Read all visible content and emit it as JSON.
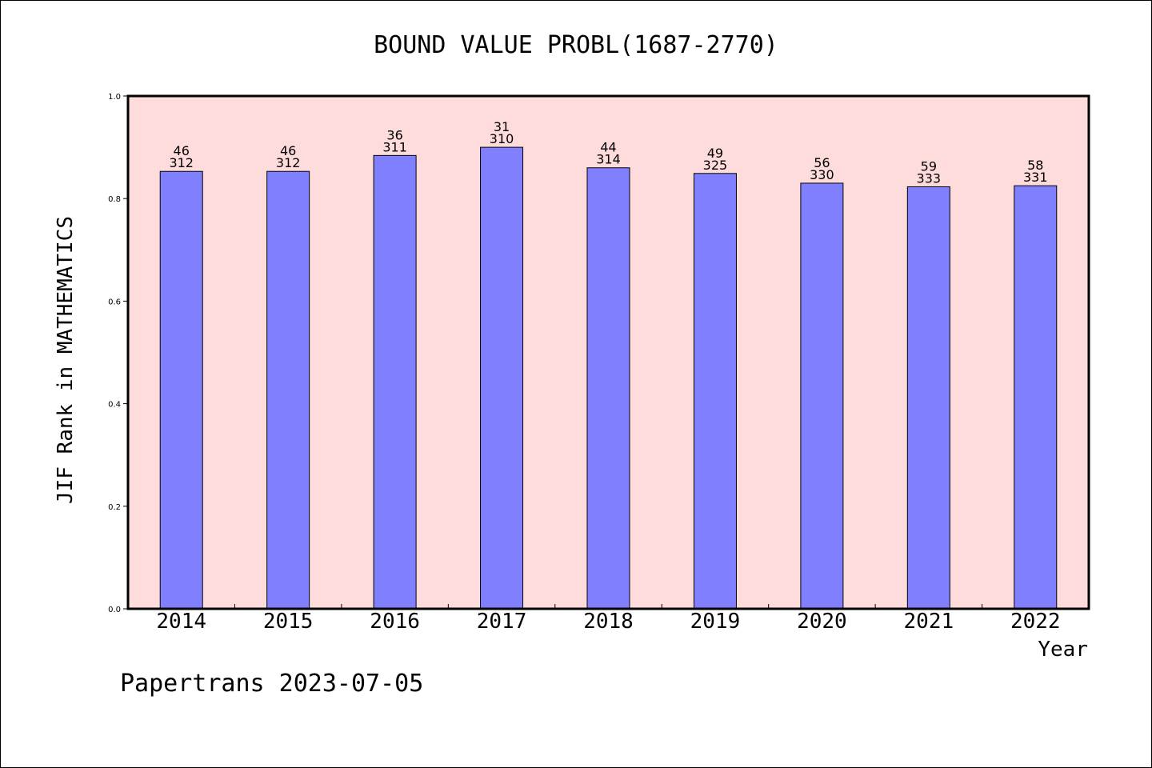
{
  "chart_data": {
    "type": "bar",
    "title": "BOUND VALUE PROBL(1687-2770)",
    "xlabel": "Year",
    "ylabel": "JIF Rank in MATHEMATICS",
    "ylim": [
      0,
      1.0
    ],
    "yticks": [
      "0.0",
      "0.2",
      "0.4",
      "0.6",
      "0.8",
      "1.0"
    ],
    "grid": false,
    "categories": [
      "2014",
      "2015",
      "2016",
      "2017",
      "2018",
      "2019",
      "2020",
      "2021",
      "2022"
    ],
    "values": [
      0.853,
      0.853,
      0.884,
      0.9,
      0.86,
      0.849,
      0.83,
      0.823,
      0.825
    ],
    "labels_top": [
      "46",
      "46",
      "36",
      "31",
      "44",
      "49",
      "56",
      "59",
      "58"
    ],
    "labels_bottom": [
      "312",
      "312",
      "311",
      "310",
      "314",
      "325",
      "330",
      "333",
      "331"
    ],
    "colors": {
      "plot_background": "#ffdcdc",
      "bar_fill": "#8080ff",
      "bar_stroke": "#000000"
    }
  },
  "footer": {
    "text": "Papertrans 2023-07-05"
  }
}
